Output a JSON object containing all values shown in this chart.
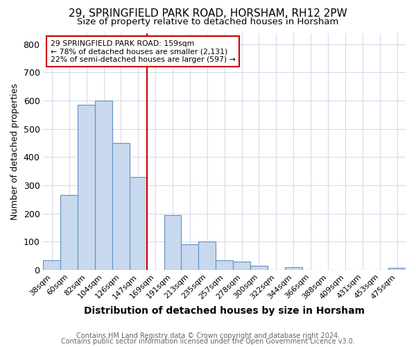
{
  "title1": "29, SPRINGFIELD PARK ROAD, HORSHAM, RH12 2PW",
  "title2": "Size of property relative to detached houses in Horsham",
  "xlabel": "Distribution of detached houses by size in Horsham",
  "ylabel": "Number of detached properties",
  "categories": [
    "38sqm",
    "60sqm",
    "82sqm",
    "104sqm",
    "126sqm",
    "147sqm",
    "169sqm",
    "191sqm",
    "213sqm",
    "235sqm",
    "257sqm",
    "278sqm",
    "300sqm",
    "322sqm",
    "344sqm",
    "366sqm",
    "388sqm",
    "409sqm",
    "431sqm",
    "453sqm",
    "475sqm"
  ],
  "values": [
    35,
    265,
    585,
    600,
    450,
    330,
    0,
    195,
    90,
    100,
    35,
    30,
    15,
    0,
    10,
    0,
    0,
    0,
    0,
    0,
    7
  ],
  "bar_color": "#c8d8ee",
  "bar_edge_color": "#6090c0",
  "vline_x": 5.5,
  "vline_color": "#cc0000",
  "annotation_text": "29 SPRINGFIELD PARK ROAD: 159sqm\n← 78% of detached houses are smaller (2,131)\n22% of semi-detached houses are larger (597) →",
  "annotation_box_color": "#ffffff",
  "annotation_box_edge": "#cc0000",
  "ylim": [
    0,
    840
  ],
  "yticks": [
    0,
    100,
    200,
    300,
    400,
    500,
    600,
    700,
    800
  ],
  "footer1": "Contains HM Land Registry data © Crown copyright and database right 2024.",
  "footer2": "Contains public sector information licensed under the Open Government Licence v3.0.",
  "bg_color": "#ffffff",
  "plot_bg": "#ffffff",
  "title1_fontsize": 11,
  "title2_fontsize": 9.5,
  "ylabel_fontsize": 9,
  "xlabel_fontsize": 10,
  "tick_fontsize": 8,
  "footer_fontsize": 7
}
